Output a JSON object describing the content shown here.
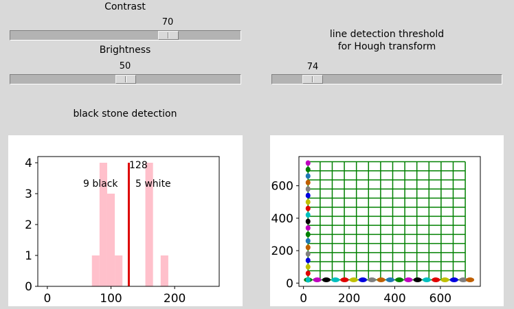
{
  "contrast": {
    "label": "Contrast",
    "value": "70"
  },
  "brightness": {
    "label": "Brightness",
    "value": "50"
  },
  "hough": {
    "label_line1": "line detection threshold",
    "label_line2": "for Hough transform",
    "value": "74"
  },
  "black_stone_label": "black stone detection",
  "histogram_plot": {
    "threshold_label": "128",
    "black_count_label": "9 black",
    "white_count_label": "5 white",
    "x_ticks": [
      "0",
      "100",
      "200"
    ],
    "y_ticks": [
      "0",
      "1",
      "2",
      "3",
      "4"
    ]
  },
  "grid_plot": {
    "x_ticks": [
      "0",
      "200",
      "400",
      "600"
    ],
    "y_ticks": [
      "0",
      "200",
      "400",
      "600"
    ]
  },
  "colors": {
    "window_bg": "#d9d9d9",
    "histogram_bar": "#ffc0cb",
    "threshold_line": "#dd0000",
    "grid_line": "#008000"
  },
  "chart_data": [
    {
      "type": "bar",
      "x": [
        70,
        82,
        94,
        106,
        154,
        178
      ],
      "values": [
        1,
        4,
        3,
        1,
        4,
        1
      ],
      "bin_width": 12,
      "threshold": 128,
      "xlim": [
        -15,
        270
      ],
      "ylim": [
        0,
        4.2
      ],
      "annotations": [
        "128",
        "9 black",
        "5 white"
      ]
    },
    {
      "type": "scatter",
      "grid_lines_x": [
        20,
        73,
        126,
        179,
        232,
        285,
        338,
        391,
        444,
        497,
        550,
        603,
        656,
        709
      ],
      "grid_lines_y": [
        20,
        76,
        132,
        188,
        244,
        300,
        356,
        412,
        468,
        524,
        580,
        636,
        692,
        748
      ],
      "points_bottom_row_x": [
        20,
        60,
        100,
        140,
        180,
        220,
        260,
        300,
        340,
        380,
        420,
        460,
        500,
        540,
        580,
        620,
        660,
        700,
        730
      ],
      "points_left_column_y": [
        20,
        60,
        100,
        140,
        180,
        220,
        260,
        300,
        340,
        380,
        420,
        460,
        500,
        540,
        580,
        620,
        660,
        700,
        740
      ],
      "xlim": [
        -20,
        775
      ],
      "ylim": [
        -20,
        780
      ]
    }
  ]
}
